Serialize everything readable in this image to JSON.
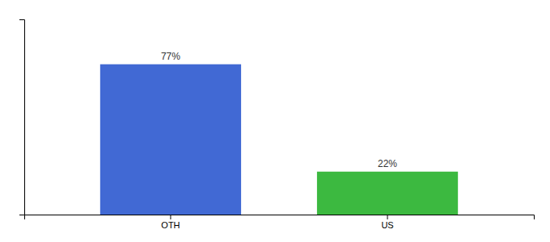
{
  "chart_data": {
    "type": "bar",
    "categories": [
      "OTH",
      "US"
    ],
    "values": [
      77,
      22
    ],
    "colors": [
      "#4169d4",
      "#3cb940"
    ],
    "value_labels": [
      "77%",
      "22%"
    ],
    "data_labels": true,
    "ylim": [
      0,
      100
    ],
    "tick_labels": "x"
  }
}
